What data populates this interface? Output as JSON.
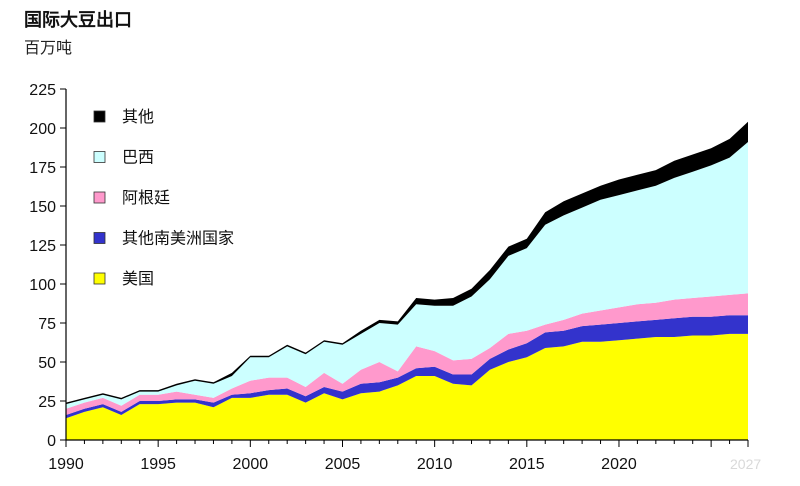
{
  "chart_data": {
    "type": "area",
    "stacked": true,
    "title": "国际大豆出口",
    "ylabel": "百万吨",
    "xlim": [
      1990,
      2027
    ],
    "ylim": [
      0,
      225
    ],
    "yticks": [
      0,
      25,
      50,
      75,
      100,
      125,
      150,
      175,
      200,
      225
    ],
    "xticks": [
      1990,
      1995,
      2000,
      2005,
      2010,
      2015,
      2020,
      2027
    ],
    "x": [
      1990,
      1991,
      1992,
      1993,
      1994,
      1995,
      1996,
      1997,
      1998,
      1999,
      2000,
      2001,
      2002,
      2003,
      2004,
      2005,
      2006,
      2007,
      2008,
      2009,
      2010,
      2011,
      2012,
      2013,
      2014,
      2015,
      2016,
      2017,
      2018,
      2019,
      2020,
      2021,
      2022,
      2023,
      2024,
      2025,
      2026,
      2027
    ],
    "series": [
      {
        "name": "美国",
        "color": "#ffff00",
        "values": [
          14,
          18,
          21,
          16,
          23,
          23,
          24,
          24,
          21,
          27,
          27,
          29,
          29,
          24,
          30,
          26,
          30,
          31,
          35,
          41,
          41,
          36,
          35,
          45,
          50,
          53,
          59,
          60,
          63,
          63,
          64,
          65,
          66,
          66,
          67,
          67,
          68,
          68
        ]
      },
      {
        "name": "其他南美洲国家",
        "color": "#3333cc",
        "values": [
          2,
          2,
          2,
          2,
          2,
          2,
          2,
          2,
          3,
          2,
          3,
          3,
          4,
          4,
          4,
          5,
          6,
          6,
          5,
          5,
          6,
          6,
          7,
          7,
          8,
          9,
          10,
          10,
          10,
          11,
          11,
          11,
          11,
          12,
          12,
          12,
          12,
          12
        ]
      },
      {
        "name": "阿根廷",
        "color": "#ff99cc",
        "values": [
          4,
          4,
          4,
          4,
          4,
          4,
          5,
          3,
          3,
          4,
          8,
          8,
          7,
          6,
          9,
          5,
          9,
          13,
          4,
          14,
          10,
          9,
          10,
          7,
          10,
          8,
          5,
          7,
          8,
          9,
          10,
          11,
          11,
          12,
          12,
          13,
          13,
          14
        ]
      },
      {
        "name": "巴西",
        "color": "#ccffff",
        "values": [
          3,
          2,
          2,
          4,
          2,
          2,
          4,
          9,
          9,
          8,
          15,
          13,
          20,
          21,
          20,
          25,
          23,
          25,
          30,
          27,
          29,
          35,
          40,
          44,
          50,
          53,
          64,
          67,
          68,
          71,
          72,
          73,
          75,
          78,
          81,
          84,
          88,
          97
        ]
      },
      {
        "name": "其他",
        "color": "#000000",
        "values": [
          1,
          1,
          1,
          1,
          1,
          1,
          1,
          1,
          1,
          2,
          1,
          1,
          1,
          1,
          1,
          1,
          2,
          2,
          2,
          4,
          4,
          5,
          5,
          6,
          6,
          6,
          8,
          9,
          9,
          9,
          10,
          10,
          10,
          11,
          11,
          11,
          12,
          13
        ]
      }
    ],
    "legend": {
      "position": "top-left",
      "order": [
        "其他",
        "巴西",
        "阿根廷",
        "其他南美洲国家",
        "美国"
      ]
    }
  },
  "watermark": "2027"
}
